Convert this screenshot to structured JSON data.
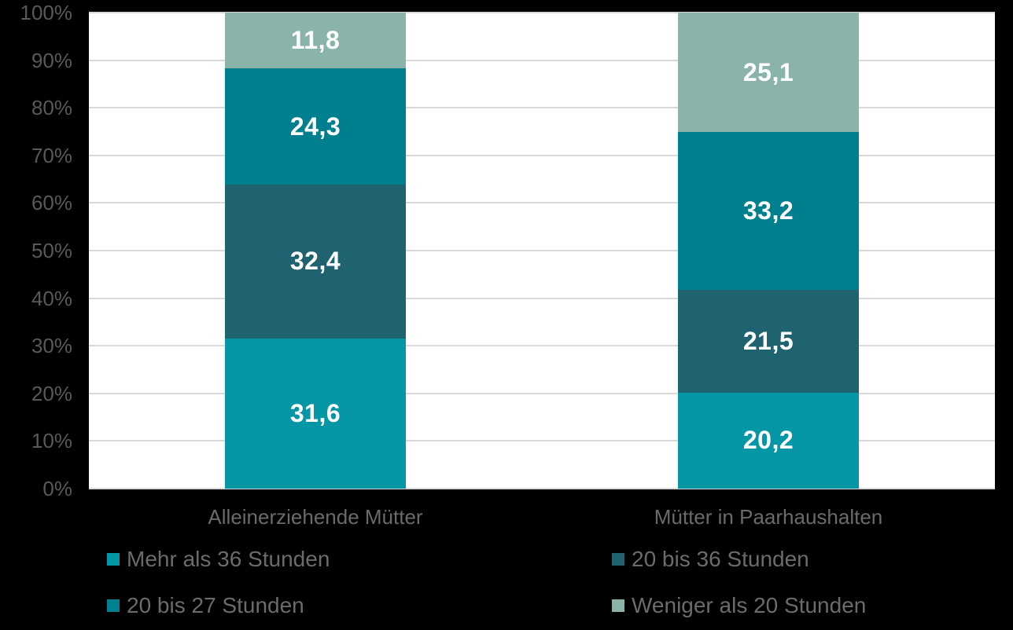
{
  "chart_data": {
    "type": "bar",
    "variant": "stacked-100-percent",
    "title": "",
    "xlabel": "",
    "ylabel": "",
    "categories": [
      "Alleinerziehende Mütter",
      "Mütter in Paarhaushalten"
    ],
    "series": [
      {
        "name": "Mehr als 36 Stunden",
        "color": "#0697A6",
        "values": [
          31.6,
          20.2
        ],
        "labels": [
          "31,6",
          "20,2"
        ]
      },
      {
        "name": "20 bis 36 Stunden",
        "color": "#1F6370",
        "values": [
          32.4,
          21.5
        ],
        "labels": [
          "32,4",
          "21,5"
        ]
      },
      {
        "name": "20 bis 27 Stunden",
        "color": "#00808E",
        "values": [
          24.3,
          33.2
        ],
        "labels": [
          "24,3",
          "33,2"
        ]
      },
      {
        "name": "Weniger als 20 Stunden",
        "color": "#8AB3AA",
        "values": [
          11.8,
          25.1
        ],
        "labels": [
          "11,8",
          "25,1"
        ]
      }
    ],
    "stack_order": "bottom-to-top",
    "ylim": [
      0,
      100
    ],
    "yticks": [
      "0%",
      "10%",
      "20%",
      "30%",
      "40%",
      "50%",
      "60%",
      "70%",
      "80%",
      "90%",
      "100%"
    ],
    "grid": true,
    "legend_position": "bottom-two-columns",
    "value_format": "german-decimal-comma"
  },
  "style": {
    "background": "#000000",
    "plot_background": "#FFFFFF",
    "grid_color": "#D9D9D9",
    "tick_text_color": "#595959",
    "category_text_color": "#6A6A6A",
    "legend_text_color": "#6B6B6B",
    "data_label_color": "#FFFFFF"
  }
}
